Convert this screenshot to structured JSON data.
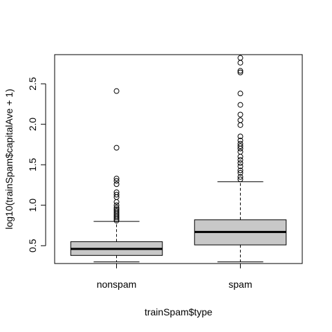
{
  "chart_data": {
    "type": "boxplot",
    "xlabel": "trainSpam$type",
    "ylabel": "log10(trainSpam$capitalAve + 1)",
    "categories": [
      "nonspam",
      "spam"
    ],
    "ylim": [
      0.28,
      2.86
    ],
    "yticks": [
      0.5,
      1.0,
      1.5,
      2.0,
      2.5
    ],
    "ytick_labels": [
      "0.5",
      "1.0",
      "1.5",
      "2.0",
      "2.5"
    ],
    "box_fill": "#c8c8c8",
    "boxes": [
      {
        "name": "nonspam",
        "whisker_low": 0.3,
        "q1": 0.38,
        "median": 0.46,
        "q3": 0.55,
        "whisker_high": 0.8,
        "outliers": [
          0.81,
          0.83,
          0.85,
          0.87,
          0.89,
          0.91,
          0.93,
          0.95,
          0.97,
          1.0,
          1.04,
          1.1,
          1.13,
          1.16,
          1.26,
          1.3,
          1.33,
          1.71,
          2.41
        ]
      },
      {
        "name": "spam",
        "whisker_low": 0.3,
        "q1": 0.51,
        "median": 0.67,
        "q3": 0.82,
        "whisker_high": 1.29,
        "outliers": [
          1.32,
          1.35,
          1.4,
          1.43,
          1.48,
          1.52,
          1.56,
          1.6,
          1.66,
          1.7,
          1.73,
          1.76,
          1.8,
          1.85,
          1.99,
          2.05,
          2.12,
          2.24,
          2.38,
          2.64,
          2.66,
          2.76,
          2.82
        ]
      }
    ]
  }
}
